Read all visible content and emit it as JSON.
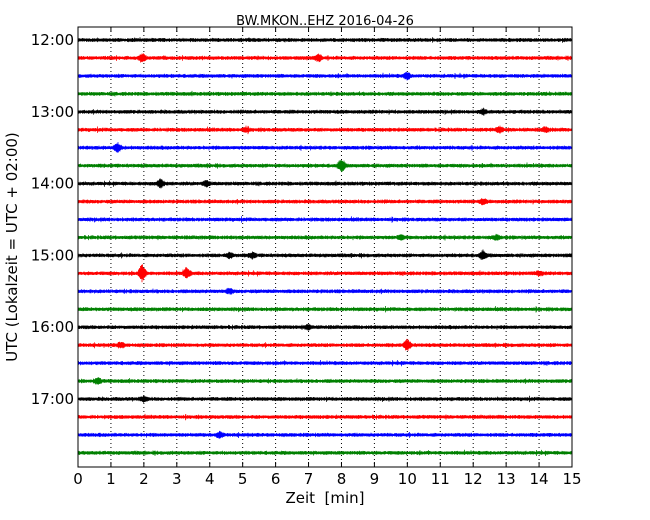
{
  "chart_data": {
    "type": "line",
    "title": "BW.MKON..EHZ 2016-04-26",
    "xlabel": "Zeit  [min]",
    "ylabel": "UTC (Lokalzeit = UTC + 02:00)",
    "xlim": [
      0,
      15
    ],
    "x_ticks": [
      "0",
      "1",
      "2",
      "3",
      "4",
      "5",
      "6",
      "7",
      "8",
      "9",
      "10",
      "11",
      "12",
      "13",
      "14",
      "15"
    ],
    "y_ticks": [
      "12:00",
      "13:00",
      "14:00",
      "15:00",
      "16:00",
      "17:00"
    ],
    "grid": "vertical-dotted",
    "trace_interval_min": 15,
    "trace_colors": [
      "#000000",
      "#ff0000",
      "#0000ff",
      "#008000"
    ],
    "traces": [
      {
        "start": "12:00",
        "color": "#000000"
      },
      {
        "start": "12:15",
        "color": "#ff0000",
        "events": [
          {
            "x": 1.95,
            "amp": 4
          },
          {
            "x": 7.3,
            "amp": 3
          }
        ]
      },
      {
        "start": "12:30",
        "color": "#0000ff",
        "events": [
          {
            "x": 10.0,
            "amp": 3
          }
        ]
      },
      {
        "start": "12:45",
        "color": "#008000"
      },
      {
        "start": "13:00",
        "color": "#000000",
        "events": [
          {
            "x": 12.3,
            "amp": 2
          }
        ]
      },
      {
        "start": "13:15",
        "color": "#ff0000",
        "events": [
          {
            "x": 5.1,
            "amp": 2
          },
          {
            "x": 12.8,
            "amp": 2.5
          },
          {
            "x": 14.2,
            "amp": 2
          }
        ]
      },
      {
        "start": "13:30",
        "color": "#0000ff",
        "events": [
          {
            "x": 1.2,
            "amp": 4
          }
        ]
      },
      {
        "start": "13:45",
        "color": "#008000",
        "events": [
          {
            "x": 8.0,
            "amp": 6
          }
        ]
      },
      {
        "start": "14:00",
        "color": "#000000",
        "events": [
          {
            "x": 2.5,
            "amp": 4
          },
          {
            "x": 3.9,
            "amp": 2.5
          }
        ]
      },
      {
        "start": "14:15",
        "color": "#ff0000",
        "events": [
          {
            "x": 12.3,
            "amp": 2
          }
        ]
      },
      {
        "start": "14:30",
        "color": "#0000ff"
      },
      {
        "start": "14:45",
        "color": "#008000",
        "events": [
          {
            "x": 9.8,
            "amp": 2
          },
          {
            "x": 12.7,
            "amp": 2
          }
        ]
      },
      {
        "start": "15:00",
        "color": "#000000",
        "events": [
          {
            "x": 4.6,
            "amp": 2.5
          },
          {
            "x": 5.3,
            "amp": 2.5
          },
          {
            "x": 12.3,
            "amp": 4
          }
        ]
      },
      {
        "start": "15:15",
        "color": "#ff0000",
        "events": [
          {
            "x": 1.95,
            "amp": 8
          },
          {
            "x": 3.3,
            "amp": 5
          },
          {
            "x": 14.0,
            "amp": 2
          }
        ]
      },
      {
        "start": "15:30",
        "color": "#0000ff",
        "events": [
          {
            "x": 4.6,
            "amp": 2
          }
        ]
      },
      {
        "start": "15:45",
        "color": "#008000"
      },
      {
        "start": "16:00",
        "color": "#000000",
        "events": [
          {
            "x": 7.0,
            "amp": 2
          }
        ]
      },
      {
        "start": "16:15",
        "color": "#ff0000",
        "events": [
          {
            "x": 1.3,
            "amp": 2.5
          },
          {
            "x": 10.0,
            "amp": 5
          }
        ]
      },
      {
        "start": "16:30",
        "color": "#0000ff"
      },
      {
        "start": "16:45",
        "color": "#008000",
        "events": [
          {
            "x": 0.6,
            "amp": 2.5
          }
        ]
      },
      {
        "start": "17:00",
        "color": "#000000",
        "events": [
          {
            "x": 2.0,
            "amp": 2
          }
        ]
      },
      {
        "start": "17:15",
        "color": "#ff0000"
      },
      {
        "start": "17:30",
        "color": "#0000ff",
        "events": [
          {
            "x": 4.3,
            "amp": 2.5
          }
        ]
      },
      {
        "start": "17:45",
        "color": "#008000"
      }
    ]
  }
}
